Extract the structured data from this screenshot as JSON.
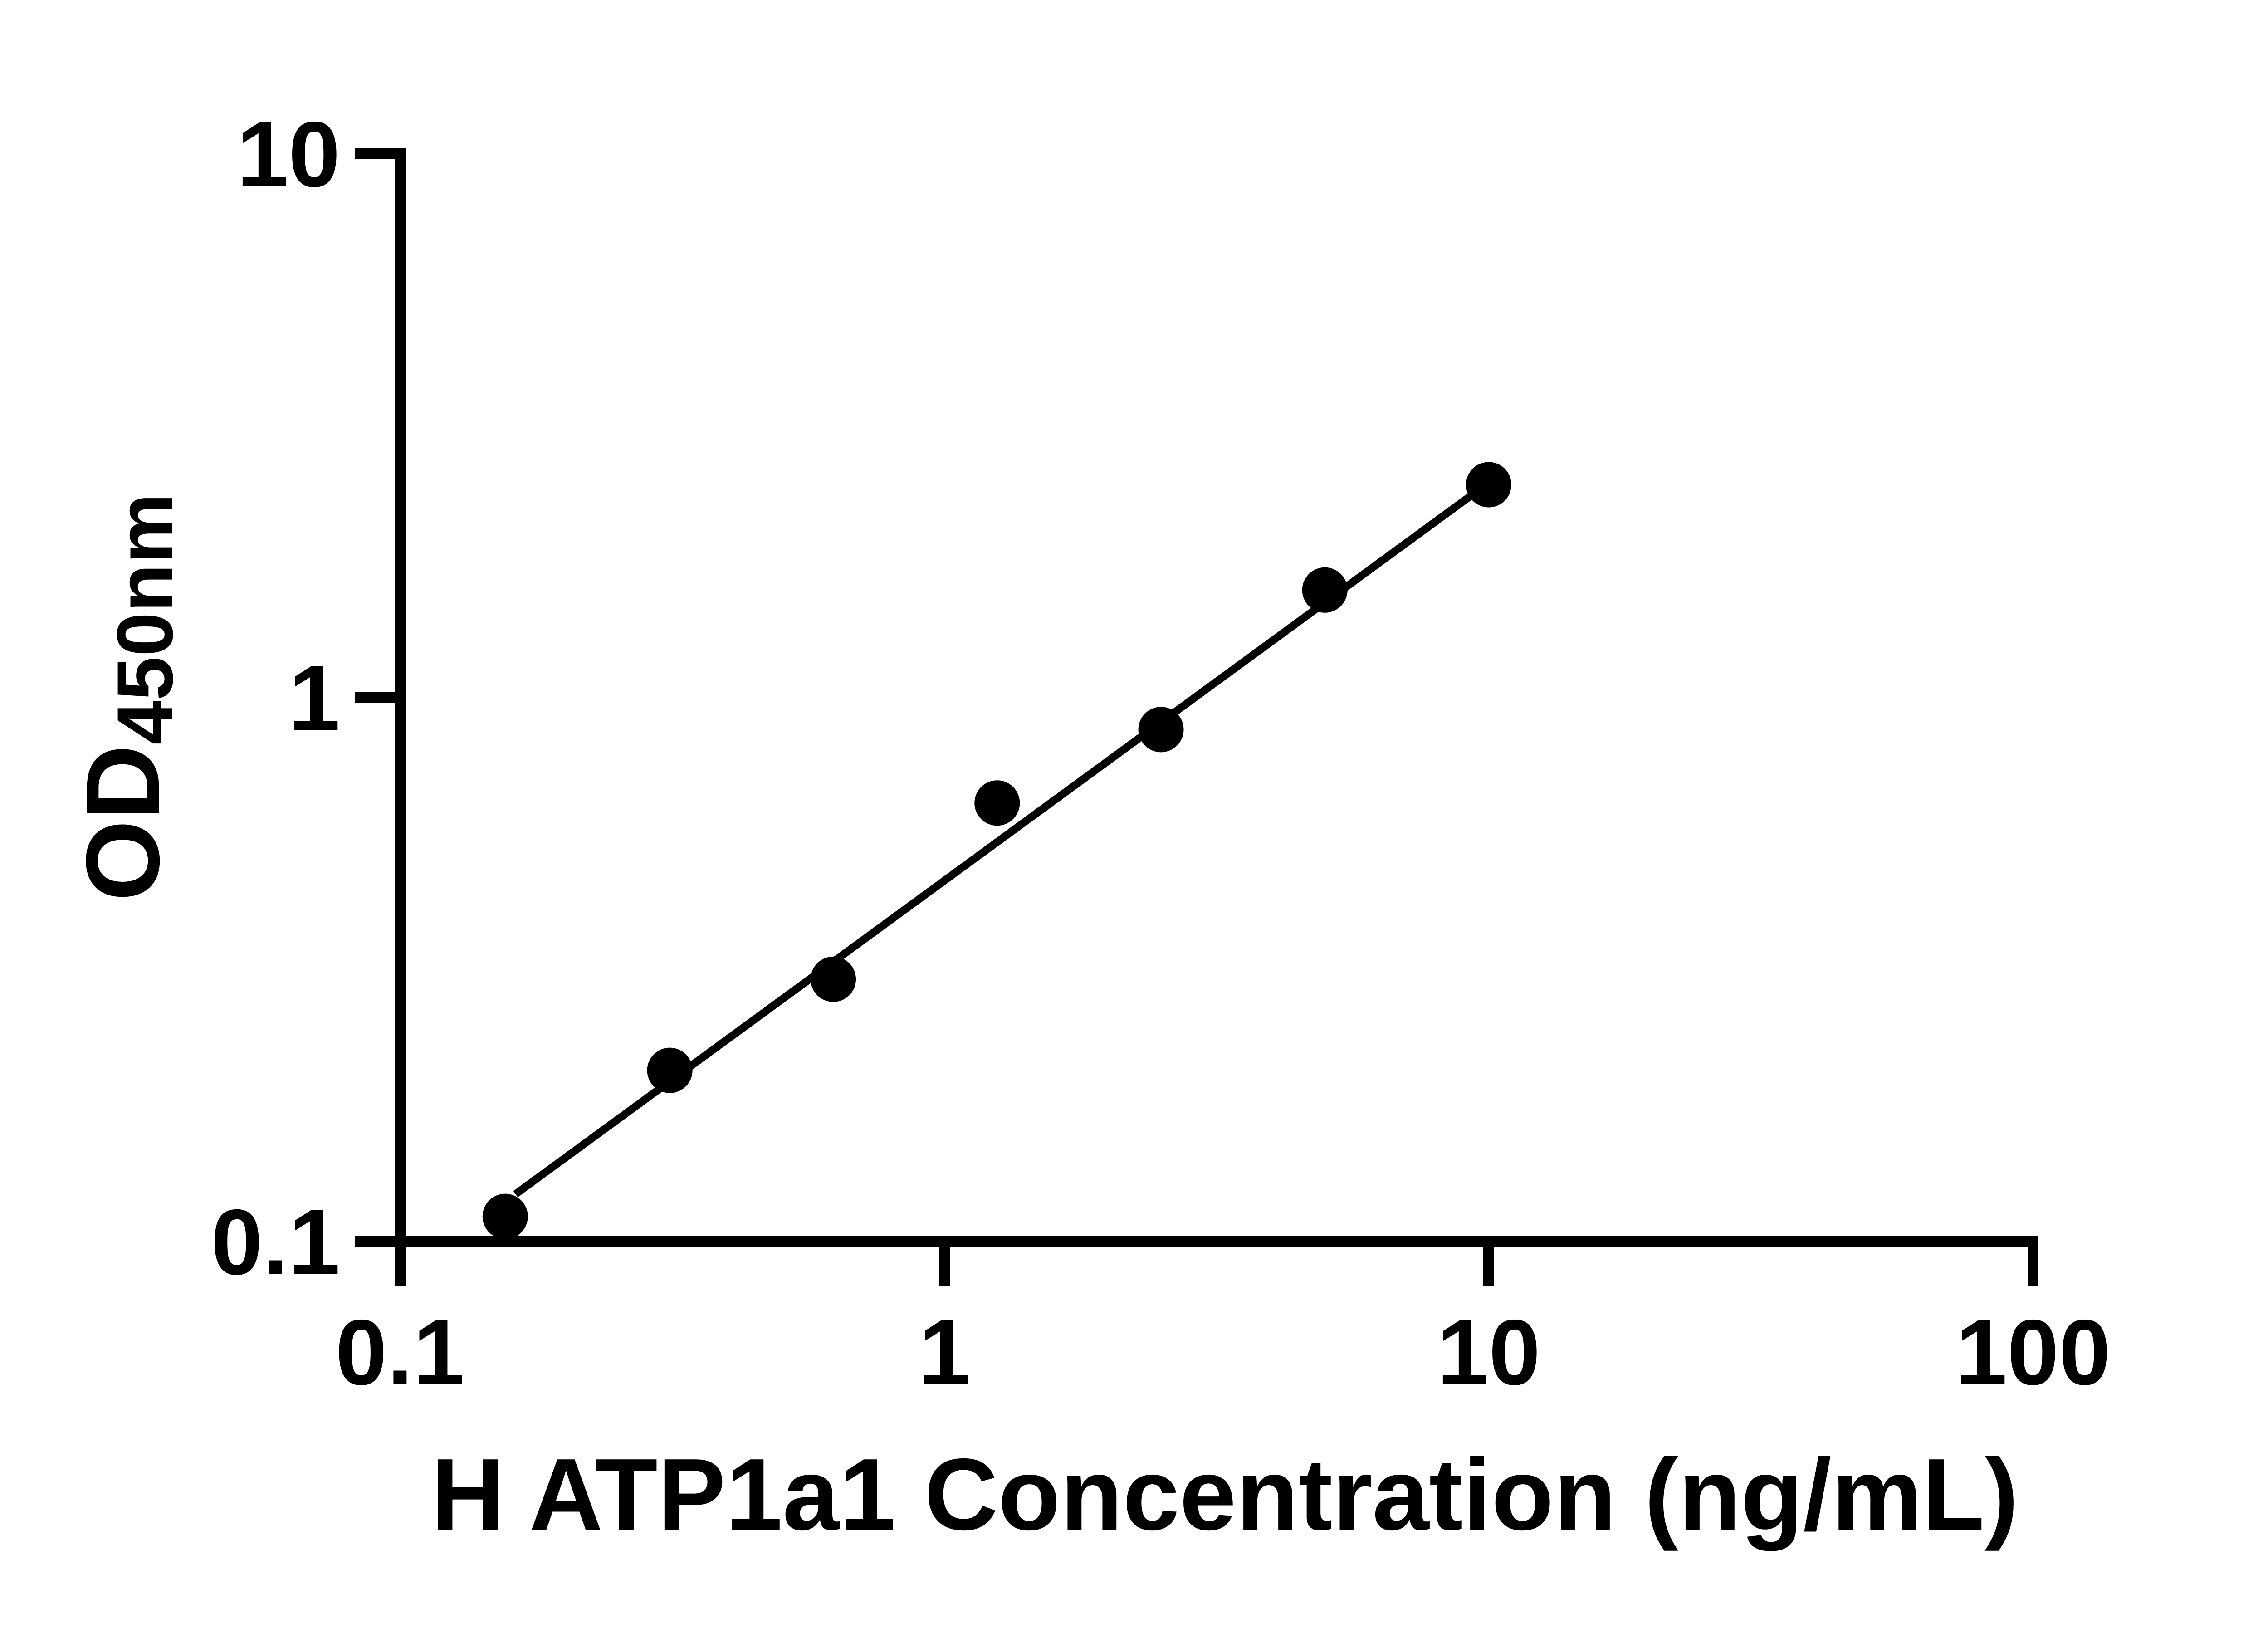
{
  "figure": {
    "background_color": "#ffffff",
    "ink_color": "#000000"
  },
  "chart_data": {
    "type": "scatter",
    "title": "",
    "xlabel": "H ATP1a1 Concentration (ng/mL)",
    "ylabel": "OD",
    "ylabel_subscript": "450nm",
    "x_scale": "log",
    "y_scale": "log",
    "xlim": [
      0.1,
      100
    ],
    "ylim": [
      0.1,
      10
    ],
    "grid": false,
    "legend": "none",
    "x_ticks": [
      {
        "value": 0.1,
        "label": "0.1"
      },
      {
        "value": 1,
        "label": "1"
      },
      {
        "value": 10,
        "label": "10"
      },
      {
        "value": 100,
        "label": "100"
      }
    ],
    "y_ticks": [
      {
        "value": 0.1,
        "label": "0.1"
      },
      {
        "value": 1,
        "label": "1"
      },
      {
        "value": 10,
        "label": "10"
      }
    ],
    "series": [
      {
        "name": "standard-curve-points",
        "marker": "filled-circle",
        "marker_color": "#000000",
        "x": [
          0.156,
          0.313,
          0.625,
          1.25,
          2.5,
          5,
          10
        ],
        "y": [
          0.111,
          0.206,
          0.303,
          0.639,
          0.872,
          1.574,
          2.459
        ]
      }
    ],
    "trend_line": {
      "name": "linear-fit-line",
      "color": "#000000",
      "x1": 0.163,
      "y1": 0.122,
      "x2": 10.0,
      "y2": 2.48
    }
  }
}
